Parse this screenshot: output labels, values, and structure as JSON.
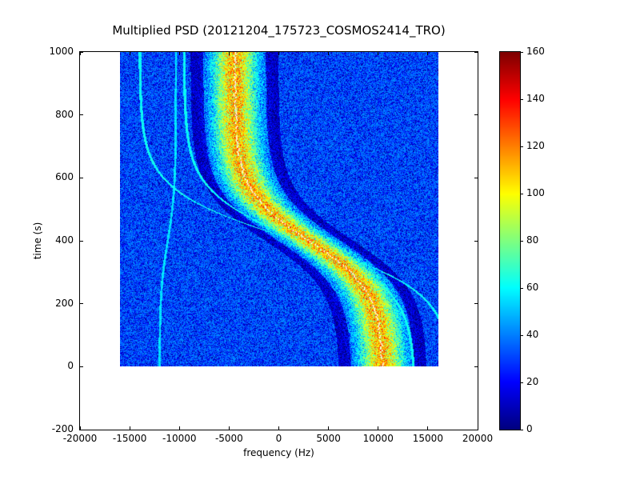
{
  "chart_data": {
    "type": "heatmap",
    "title": "Multiplied PSD (20121204_175723_COSMOS2414_TRO)",
    "xlabel": "frequency (Hz)",
    "ylabel": "time (s)",
    "xlim": [
      -20000,
      20000
    ],
    "ylim": [
      -200,
      1000
    ],
    "x_ticks": [
      -20000,
      -15000,
      -10000,
      -5000,
      0,
      5000,
      10000,
      15000,
      20000
    ],
    "y_ticks": [
      -200,
      0,
      200,
      400,
      600,
      800,
      1000
    ],
    "grid": false,
    "colormap": "jet",
    "colorbar": {
      "position": "right",
      "min": 0,
      "max": 160,
      "ticks": [
        0,
        20,
        40,
        60,
        80,
        100,
        120,
        140,
        160
      ]
    },
    "image_extent": {
      "x": [
        -16000,
        16000
      ],
      "y": [
        0,
        1000
      ]
    },
    "background_noise": {
      "base": 28,
      "spread": 16,
      "speckle_fraction": 0.32,
      "speckle_low": 4,
      "speckle_high": 22
    },
    "doppler_ridge": {
      "model": "f(t) = f0 - amplitude * tanh((t - t0) / tau)",
      "f0_hz": 3000,
      "amplitude_hz": 7500,
      "t0_s": 400,
      "tau_s": 160,
      "sigma_hz": 1500,
      "peak_value": 82,
      "dark_ring": {
        "inner_sigma": 2.1,
        "outer_sigma": 2.95,
        "drop": 22
      },
      "center_line_color": "#ffffff",
      "sample_points": [
        {
          "t": 0,
          "f": 10400
        },
        {
          "t": 200,
          "f": 9400
        },
        {
          "t": 300,
          "f": 7200
        },
        {
          "t": 400,
          "f": 3000
        },
        {
          "t": 500,
          "f": -1200
        },
        {
          "t": 600,
          "f": -3400
        },
        {
          "t": 800,
          "f": -4400
        },
        {
          "t": 1000,
          "f": -4500
        }
      ]
    },
    "side_tracks": [
      {
        "scale": 1.55,
        "offset_hz": -2600,
        "value": 55,
        "halfwidth_hz": 130
      },
      {
        "scale": 2.1,
        "offset_hz": -4600,
        "value": 55,
        "halfwidth_hz": 130
      },
      {
        "scale": -0.11,
        "offset_hz": -10900,
        "value": 50,
        "halfwidth_hz": 110
      }
    ]
  }
}
